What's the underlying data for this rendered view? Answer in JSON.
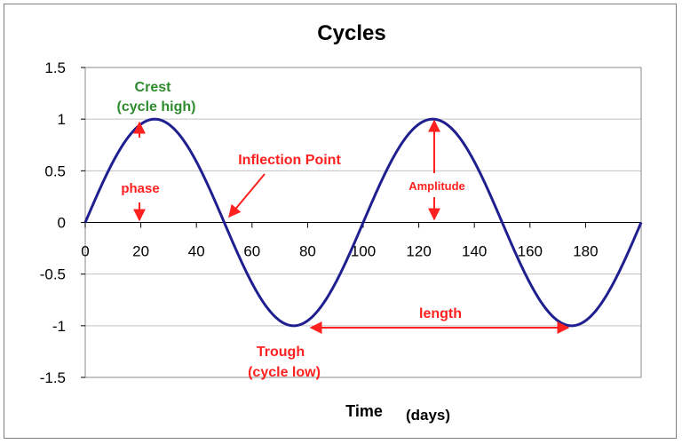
{
  "chart_data": {
    "type": "line",
    "title": "Cycles",
    "xlabel_main": "Time",
    "xlabel_unit": "(days)",
    "ylabel": "",
    "xlim": [
      0,
      200
    ],
    "ylim": [
      -1.5,
      1.5
    ],
    "x_ticks": [
      "0",
      "20",
      "40",
      "60",
      "80",
      "100",
      "120",
      "140",
      "160",
      "180"
    ],
    "x_tick_values": [
      0,
      20,
      40,
      60,
      80,
      100,
      120,
      140,
      160,
      180
    ],
    "y_ticks": [
      "1.5",
      "1",
      "0.5",
      "0",
      "-0.5",
      "-1",
      "-1.5"
    ],
    "y_tick_values": [
      1.5,
      1,
      0.5,
      0,
      -0.5,
      -1,
      -1.5
    ],
    "grid": "horizontal",
    "legend": "none",
    "series": [
      {
        "function": "sine",
        "amplitude": 1,
        "period": 100,
        "x_start": 0,
        "x_end": 200,
        "color": "#1f1f8f"
      }
    ],
    "key_points": [
      {
        "x": 25,
        "y": 1,
        "label": "crest"
      },
      {
        "x": 50,
        "y": 0,
        "label": "inflection"
      },
      {
        "x": 75,
        "y": -1,
        "label": "trough"
      },
      {
        "x": 125,
        "y": 1,
        "label": "crest"
      },
      {
        "x": 175,
        "y": -1,
        "label": "trough"
      }
    ],
    "annotations": {
      "crest_line1": "Crest",
      "crest_line2": "(cycle high)",
      "phase": "phase",
      "inflection": "Inflection Point",
      "amplitude": "Amplitude",
      "length": "length",
      "trough_line1": "Trough",
      "trough_line2": "(cycle low)"
    },
    "colors": {
      "line": "#1f1f8f",
      "annotation_red": "#ff2020",
      "crest_green": "#2e8b2e",
      "grid": "#c0c0c0"
    }
  }
}
